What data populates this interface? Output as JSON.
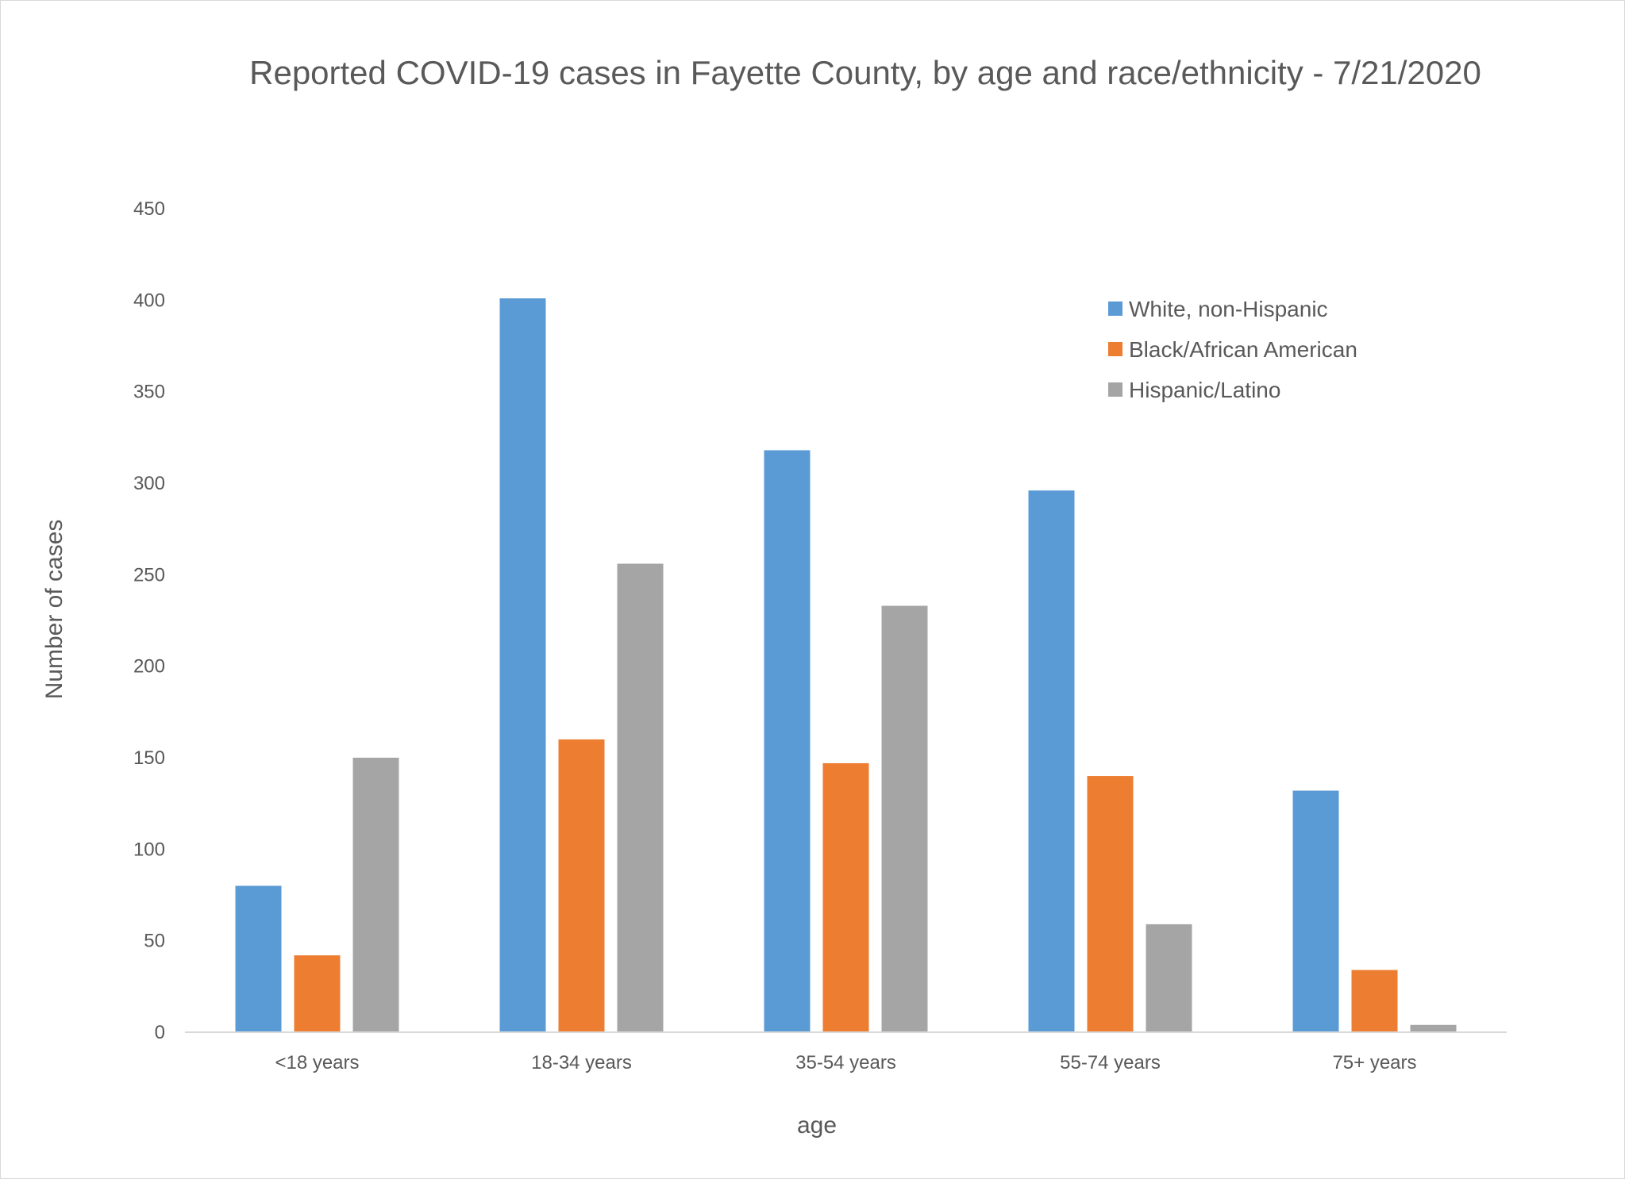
{
  "chart_data": {
    "type": "bar",
    "title": "Reported COVID-19 cases in Fayette County, by age and race/ethnicity - 7/21/2020",
    "xlabel": "age",
    "ylabel": "Number of cases",
    "ylim": [
      0,
      450
    ],
    "yticks": [
      0,
      50,
      100,
      150,
      200,
      250,
      300,
      350,
      400,
      450
    ],
    "categories": [
      "<18 years",
      "18-34 years",
      "35-54 years",
      "55-74 years",
      "75+ years"
    ],
    "series": [
      {
        "name": "White, non-Hispanic",
        "color": "#5b9bd5",
        "values": [
          80,
          401,
          318,
          296,
          132
        ]
      },
      {
        "name": "Black/African American",
        "color": "#ed7d31",
        "values": [
          42,
          160,
          147,
          140,
          34
        ]
      },
      {
        "name": "Hispanic/Latino",
        "color": "#a5a5a5",
        "values": [
          150,
          256,
          233,
          59,
          4
        ]
      }
    ],
    "grid": false,
    "legend_position": "top-right"
  }
}
